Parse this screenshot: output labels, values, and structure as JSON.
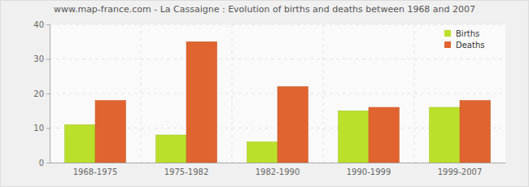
{
  "chart_data": {
    "type": "bar",
    "title": "www.map-france.com - La Cassaigne : Evolution of births and deaths between 1968 and 2007",
    "categories": [
      "1968-1975",
      "1975-1982",
      "1982-1990",
      "1990-1999",
      "1999-2007"
    ],
    "series": [
      {
        "name": "Births",
        "color": "#bbe02b",
        "values": [
          11,
          8,
          6,
          15,
          16
        ]
      },
      {
        "name": "Deaths",
        "color": "#e0642f",
        "values": [
          18,
          35,
          22,
          16,
          18
        ]
      }
    ],
    "ylim": [
      0,
      40
    ],
    "yticks": [
      0,
      10,
      20,
      30,
      40
    ],
    "grid": true,
    "legend": "upper right"
  }
}
